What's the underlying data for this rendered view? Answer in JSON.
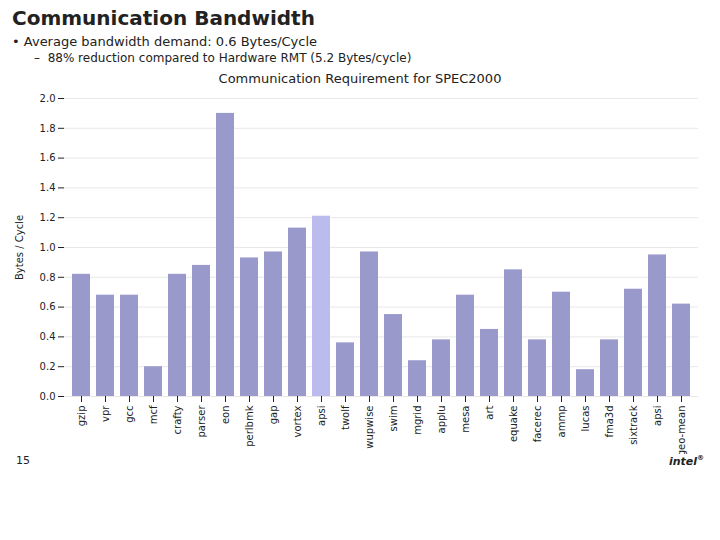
{
  "chart_data": {
    "type": "bar",
    "title": "Communication Requirement for SPEC2000",
    "annotations": [
      "Communication Bandwidth",
      "• Average bandwidth demand: 0.6 Bytes/Cycle",
      "–  88% reduction compared to Hardware RMT (5.2 Bytes/cycle)",
      "15",
      "intel",
      "®"
    ],
    "ylabel": "Bytes / Cycle",
    "categories": [
      "gzip",
      "vpr",
      "gcc",
      "mcf",
      "crafty",
      "parser",
      "eon",
      "perlbmk",
      "gap",
      "vortex",
      "apsi",
      "twolf",
      "wupwise",
      "swim",
      "mgrid",
      "applu",
      "mesa",
      "art",
      "equake",
      "facerec",
      "ammp",
      "lucas",
      "fma3d",
      "sixtrack",
      "apsi",
      "geo-mean"
    ],
    "values": [
      0.82,
      0.68,
      0.68,
      0.2,
      0.82,
      0.88,
      1.9,
      0.93,
      0.97,
      1.13,
      1.21,
      0.36,
      0.97,
      0.55,
      0.24,
      0.38,
      0.68,
      0.45,
      0.85,
      0.38,
      0.7,
      0.18,
      0.38,
      0.72,
      0.95,
      0.62
    ],
    "colors": [
      "#9999cc",
      "#9999cc",
      "#9999cc",
      "#9999cc",
      "#9999cc",
      "#9999cc",
      "#9999cc",
      "#9999cc",
      "#9999cc",
      "#9999cc",
      "#bbbbee",
      "#9999cc",
      "#9999cc",
      "#9999cc",
      "#9999cc",
      "#9999cc",
      "#9999cc",
      "#9999cc",
      "#9999cc",
      "#9999cc",
      "#9999cc",
      "#9999cc",
      "#9999cc",
      "#9999cc",
      "#9999cc",
      "#9999cc"
    ],
    "ylim": [
      0,
      2.0
    ],
    "yticks": [
      {
        "value": 0,
        "label": "0.0"
      },
      0.2,
      0.4,
      0.6,
      0.8,
      {
        "value": 1.0,
        "label": "1.0"
      },
      1.2,
      1.4,
      1.6,
      1.8,
      {
        "value": 2.0,
        "label": "2.0"
      }
    ],
    "grid": true
  }
}
